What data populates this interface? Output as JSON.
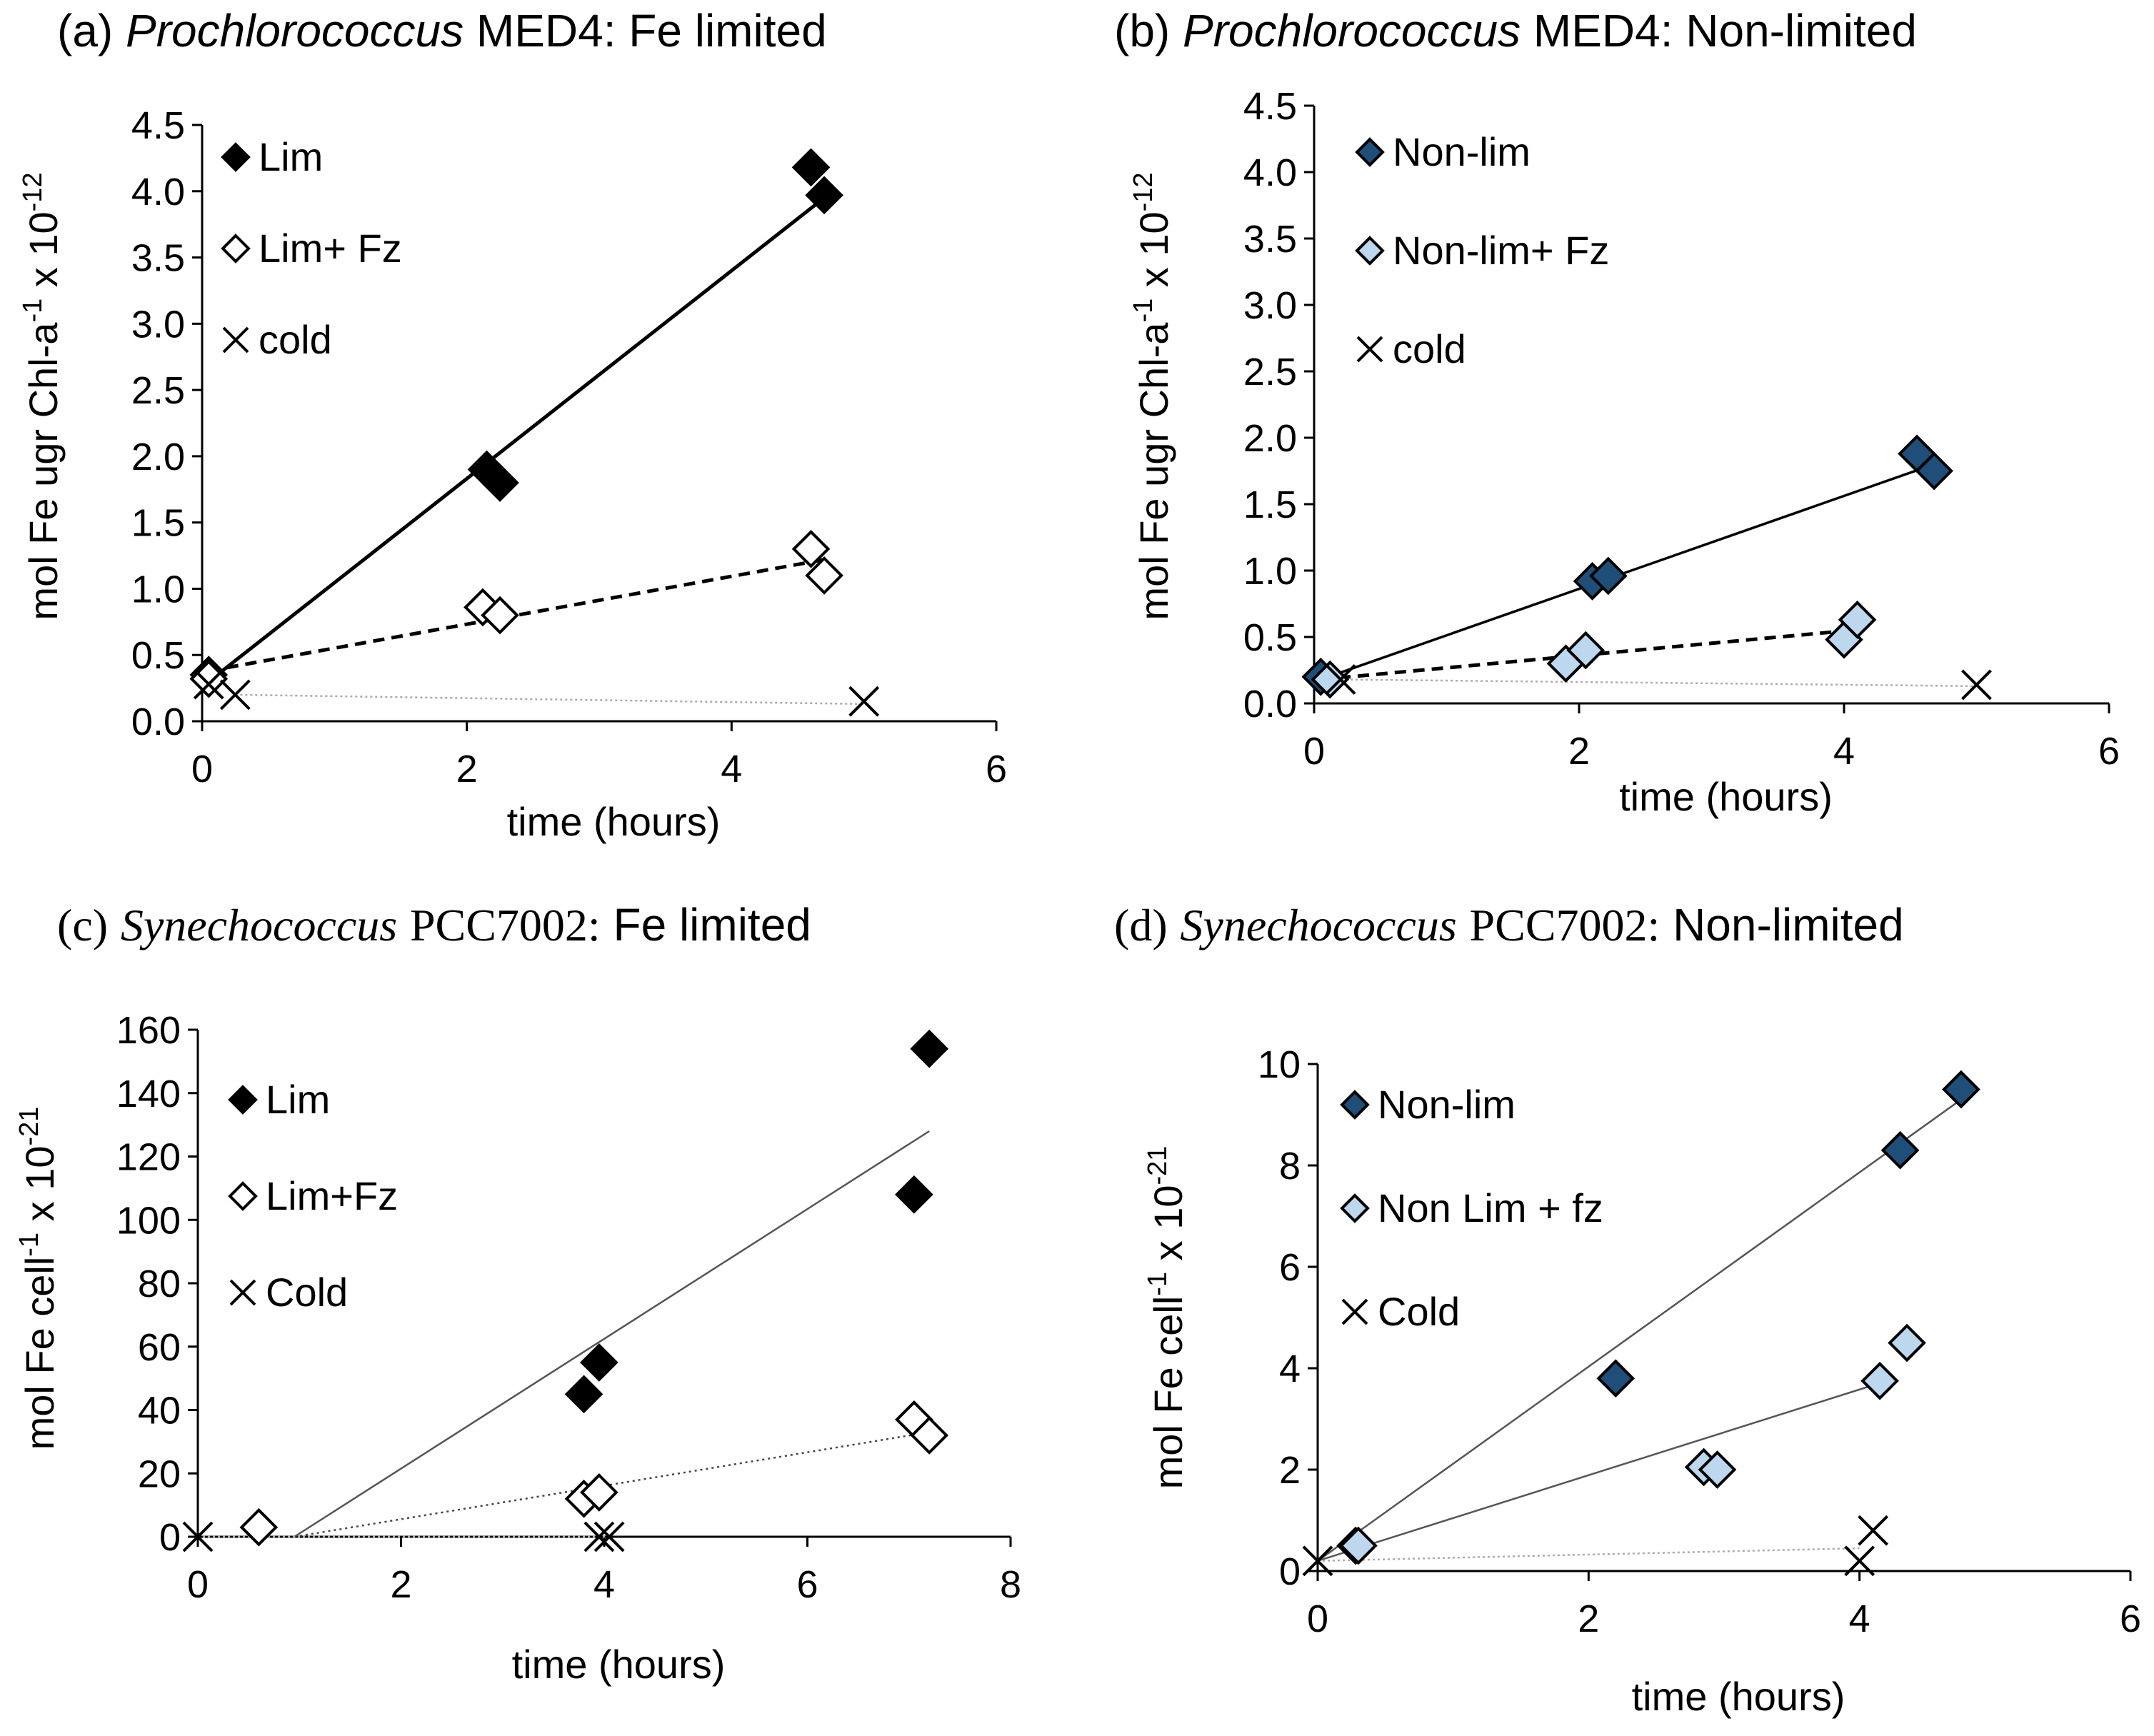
{
  "chart_data": [
    {
      "id": "a",
      "type": "scatter",
      "title": {
        "label": "(a)",
        "organism": "Prochlorococcus",
        "strain": "MED4:",
        "condition": "Fe limited"
      },
      "title_font": "sans",
      "xlabel": "time (hours)",
      "ylabel": {
        "base": "mol Fe ugr Chl-a",
        "sup1": "-1",
        "mid": " x 10",
        "sup2": "-12"
      },
      "xlim": [
        0,
        6
      ],
      "ylim": [
        0,
        4.5
      ],
      "xticks": [
        "0",
        "2",
        "4",
        "6"
      ],
      "yticks": [
        "0.0",
        "0.5",
        "1.0",
        "1.5",
        "2.0",
        "2.5",
        "3.0",
        "3.5",
        "4.0",
        "4.5"
      ],
      "series": [
        {
          "name": "Lim",
          "marker": "diamond",
          "fill": "#000000",
          "stroke": "#000000",
          "points": [
            [
              0.05,
              0.35
            ],
            [
              2.15,
              1.9
            ],
            [
              2.25,
              1.8
            ],
            [
              4.6,
              4.18
            ],
            [
              4.7,
              3.97
            ]
          ],
          "trend": [
            [
              0.05,
              0.3
            ],
            [
              4.7,
              3.95
            ]
          ],
          "trend_style": "solid-bold"
        },
        {
          "name": "Lim+ Fz",
          "marker": "diamond",
          "fill": "#ffffff",
          "stroke": "#000000",
          "points": [
            [
              0.05,
              0.32
            ],
            [
              2.12,
              0.86
            ],
            [
              2.25,
              0.8
            ],
            [
              4.6,
              1.3
            ],
            [
              4.7,
              1.1
            ]
          ],
          "trend": [
            [
              0.05,
              0.38
            ],
            [
              4.7,
              1.22
            ]
          ],
          "trend_style": "dashed-bold"
        },
        {
          "name": "cold",
          "marker": "x",
          "fill": "none",
          "stroke": "#000000",
          "points": [
            [
              0.05,
              0.28
            ],
            [
              0.25,
              0.2
            ],
            [
              5.0,
              0.15
            ]
          ],
          "trend": [
            [
              0.25,
              0.2
            ],
            [
              5.0,
              0.13
            ]
          ],
          "trend_style": "dotted-light"
        }
      ]
    },
    {
      "id": "b",
      "type": "scatter",
      "title": {
        "label": "(b)",
        "organism": "Prochlorococcus",
        "strain": "MED4:",
        "condition": "Non-limited"
      },
      "title_font": "sans",
      "xlabel": "time (hours)",
      "ylabel": {
        "base": "mol Fe ugr Chl-a",
        "sup1": "-1",
        "mid": " x 10",
        "sup2": "-12"
      },
      "xlim": [
        0,
        6
      ],
      "ylim": [
        0,
        4.5
      ],
      "xticks": [
        "0",
        "2",
        "4",
        "6"
      ],
      "yticks": [
        "0.0",
        "0.5",
        "1.0",
        "1.5",
        "2.0",
        "2.5",
        "3.0",
        "3.5",
        "4.0",
        "4.5"
      ],
      "series": [
        {
          "name": "Non-lim",
          "marker": "diamond",
          "fill": "#1f4e79",
          "stroke": "#000000",
          "points": [
            [
              0.05,
              0.2
            ],
            [
              2.1,
              0.92
            ],
            [
              2.22,
              0.96
            ],
            [
              4.55,
              1.88
            ],
            [
              4.68,
              1.75
            ]
          ],
          "trend": [
            [
              0.05,
              0.18
            ],
            [
              4.68,
              1.8
            ]
          ],
          "trend_style": "solid"
        },
        {
          "name": "Non-lim+ Fz",
          "marker": "diamond",
          "fill": "#bdd7ee",
          "stroke": "#000000",
          "points": [
            [
              0.12,
              0.18
            ],
            [
              1.9,
              0.3
            ],
            [
              2.05,
              0.4
            ],
            [
              4.0,
              0.48
            ],
            [
              4.1,
              0.63
            ]
          ],
          "trend": [
            [
              0.05,
              0.18
            ],
            [
              4.05,
              0.55
            ]
          ],
          "trend_style": "dashed-bold"
        },
        {
          "name": "cold",
          "marker": "x",
          "fill": "none",
          "stroke": "#000000",
          "points": [
            [
              0.2,
              0.18
            ],
            [
              5.0,
              0.14
            ]
          ],
          "trend": [
            [
              0.2,
              0.18
            ],
            [
              5.0,
              0.13
            ]
          ],
          "trend_style": "dotted-light"
        }
      ]
    },
    {
      "id": "c",
      "type": "scatter",
      "title": {
        "label": "(c)",
        "organism": "Synechococcus",
        "strain": "PCC7002:",
        "condition": "Fe limited"
      },
      "title_font": "serif",
      "xlabel": "time (hours)",
      "ylabel": {
        "base": "mol Fe cell",
        "sup1": "-1",
        "mid": " x 10",
        "sup2": "-21"
      },
      "xlim": [
        0,
        8
      ],
      "ylim": [
        0,
        160
      ],
      "xticks": [
        "0",
        "2",
        "4",
        "6",
        "8"
      ],
      "yticks": [
        "0",
        "20",
        "40",
        "60",
        "80",
        "100",
        "120",
        "140",
        "160"
      ],
      "series": [
        {
          "name": "Lim",
          "marker": "diamond",
          "fill": "#000000",
          "stroke": "#000000",
          "points": [
            [
              3.8,
              45
            ],
            [
              3.95,
              55
            ],
            [
              7.05,
              108
            ],
            [
              7.2,
              154
            ]
          ],
          "trend": [
            [
              0.95,
              0
            ],
            [
              7.2,
              128
            ]
          ],
          "trend_style": "solid-thin"
        },
        {
          "name": "Lim+Fz",
          "marker": "diamond",
          "fill": "#ffffff",
          "stroke": "#000000",
          "points": [
            [
              0.6,
              3
            ],
            [
              3.8,
              12
            ],
            [
              3.95,
              14
            ],
            [
              7.05,
              37
            ],
            [
              7.2,
              32
            ]
          ],
          "trend": [
            [
              0.95,
              0
            ],
            [
              7.2,
              33
            ]
          ],
          "trend_style": "dotted"
        },
        {
          "name": "Cold",
          "marker": "x",
          "fill": "none",
          "stroke": "#000000",
          "points": [
            [
              0.0,
              0
            ],
            [
              3.95,
              0
            ],
            [
              4.05,
              0
            ]
          ],
          "trend": [
            [
              0.0,
              0
            ],
            [
              4.05,
              0
            ]
          ],
          "trend_style": "dotted-light"
        }
      ]
    },
    {
      "id": "d",
      "type": "scatter",
      "title": {
        "label": "(d)",
        "organism": "Synechococcus",
        "strain": "PCC7002:",
        "condition": "Non-limited"
      },
      "title_font": "serif",
      "xlabel": "time (hours)",
      "ylabel": {
        "base": "mol Fe cell",
        "sup1": "-1",
        "mid": " x 10",
        "sup2": "-21"
      },
      "xlim": [
        0,
        6
      ],
      "ylim": [
        0,
        10
      ],
      "xticks": [
        "0",
        "2",
        "4",
        "6"
      ],
      "yticks": [
        "0",
        "2",
        "4",
        "6",
        "8",
        "10"
      ],
      "series": [
        {
          "name": "Non-lim",
          "marker": "diamond",
          "fill": "#1f4e79",
          "stroke": "#000000",
          "points": [
            [
              0.28,
              0.5
            ],
            [
              2.2,
              3.8
            ],
            [
              4.3,
              8.3
            ],
            [
              4.75,
              9.5
            ]
          ],
          "trend": [
            [
              0.0,
              0.2
            ],
            [
              4.75,
              9.3
            ]
          ],
          "trend_style": "solid-thin"
        },
        {
          "name": "Non Lim + fz",
          "marker": "diamond",
          "fill": "#bdd7ee",
          "stroke": "#000000",
          "points": [
            [
              0.3,
              0.5
            ],
            [
              2.85,
              2.05
            ],
            [
              2.95,
              2.0
            ],
            [
              4.15,
              3.75
            ],
            [
              4.35,
              4.5
            ]
          ],
          "trend": [
            [
              0.0,
              0.2
            ],
            [
              4.2,
              3.75
            ]
          ],
          "trend_style": "solid-thin"
        },
        {
          "name": "Cold",
          "marker": "x",
          "fill": "none",
          "stroke": "#000000",
          "points": [
            [
              0.0,
              0.2
            ],
            [
              4.0,
              0.2
            ],
            [
              4.1,
              0.8
            ]
          ],
          "trend": [
            [
              0.0,
              0.2
            ],
            [
              4.0,
              0.45
            ]
          ],
          "trend_style": "dotted-light"
        }
      ]
    }
  ]
}
